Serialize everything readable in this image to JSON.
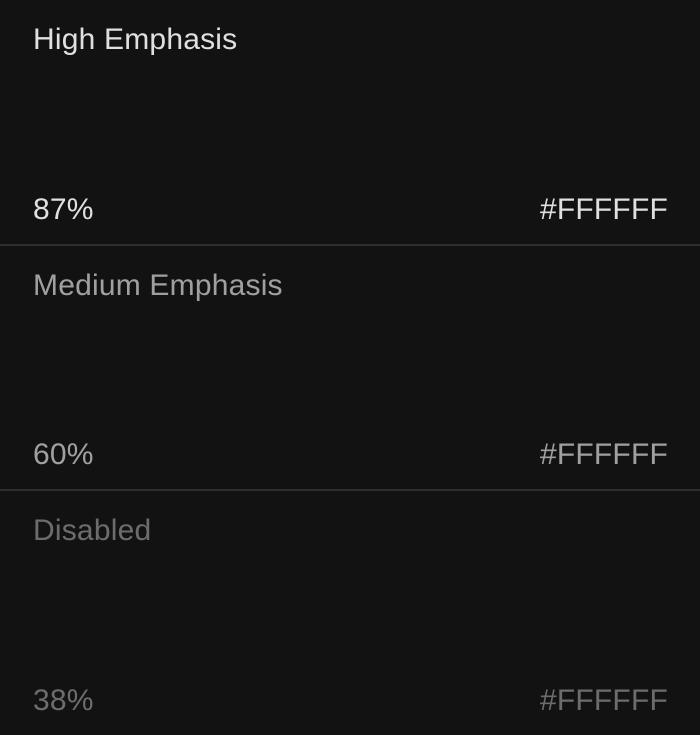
{
  "theme": {
    "background_color": "#121212",
    "divider_color": "rgba(255,255,255,0.12)",
    "base_text_hex": "#FFFFFF"
  },
  "sections": [
    {
      "title": "High Emphasis",
      "opacity_label": "87%",
      "hex_value": "#FFFFFF",
      "text_color": "rgba(255,255,255,0.87)"
    },
    {
      "title": "Medium Emphasis",
      "opacity_label": "60%",
      "hex_value": "#FFFFFF",
      "text_color": "rgba(255,255,255,0.60)"
    },
    {
      "title": "Disabled",
      "opacity_label": "38%",
      "hex_value": "#FFFFFF",
      "text_color": "rgba(255,255,255,0.38)"
    }
  ]
}
